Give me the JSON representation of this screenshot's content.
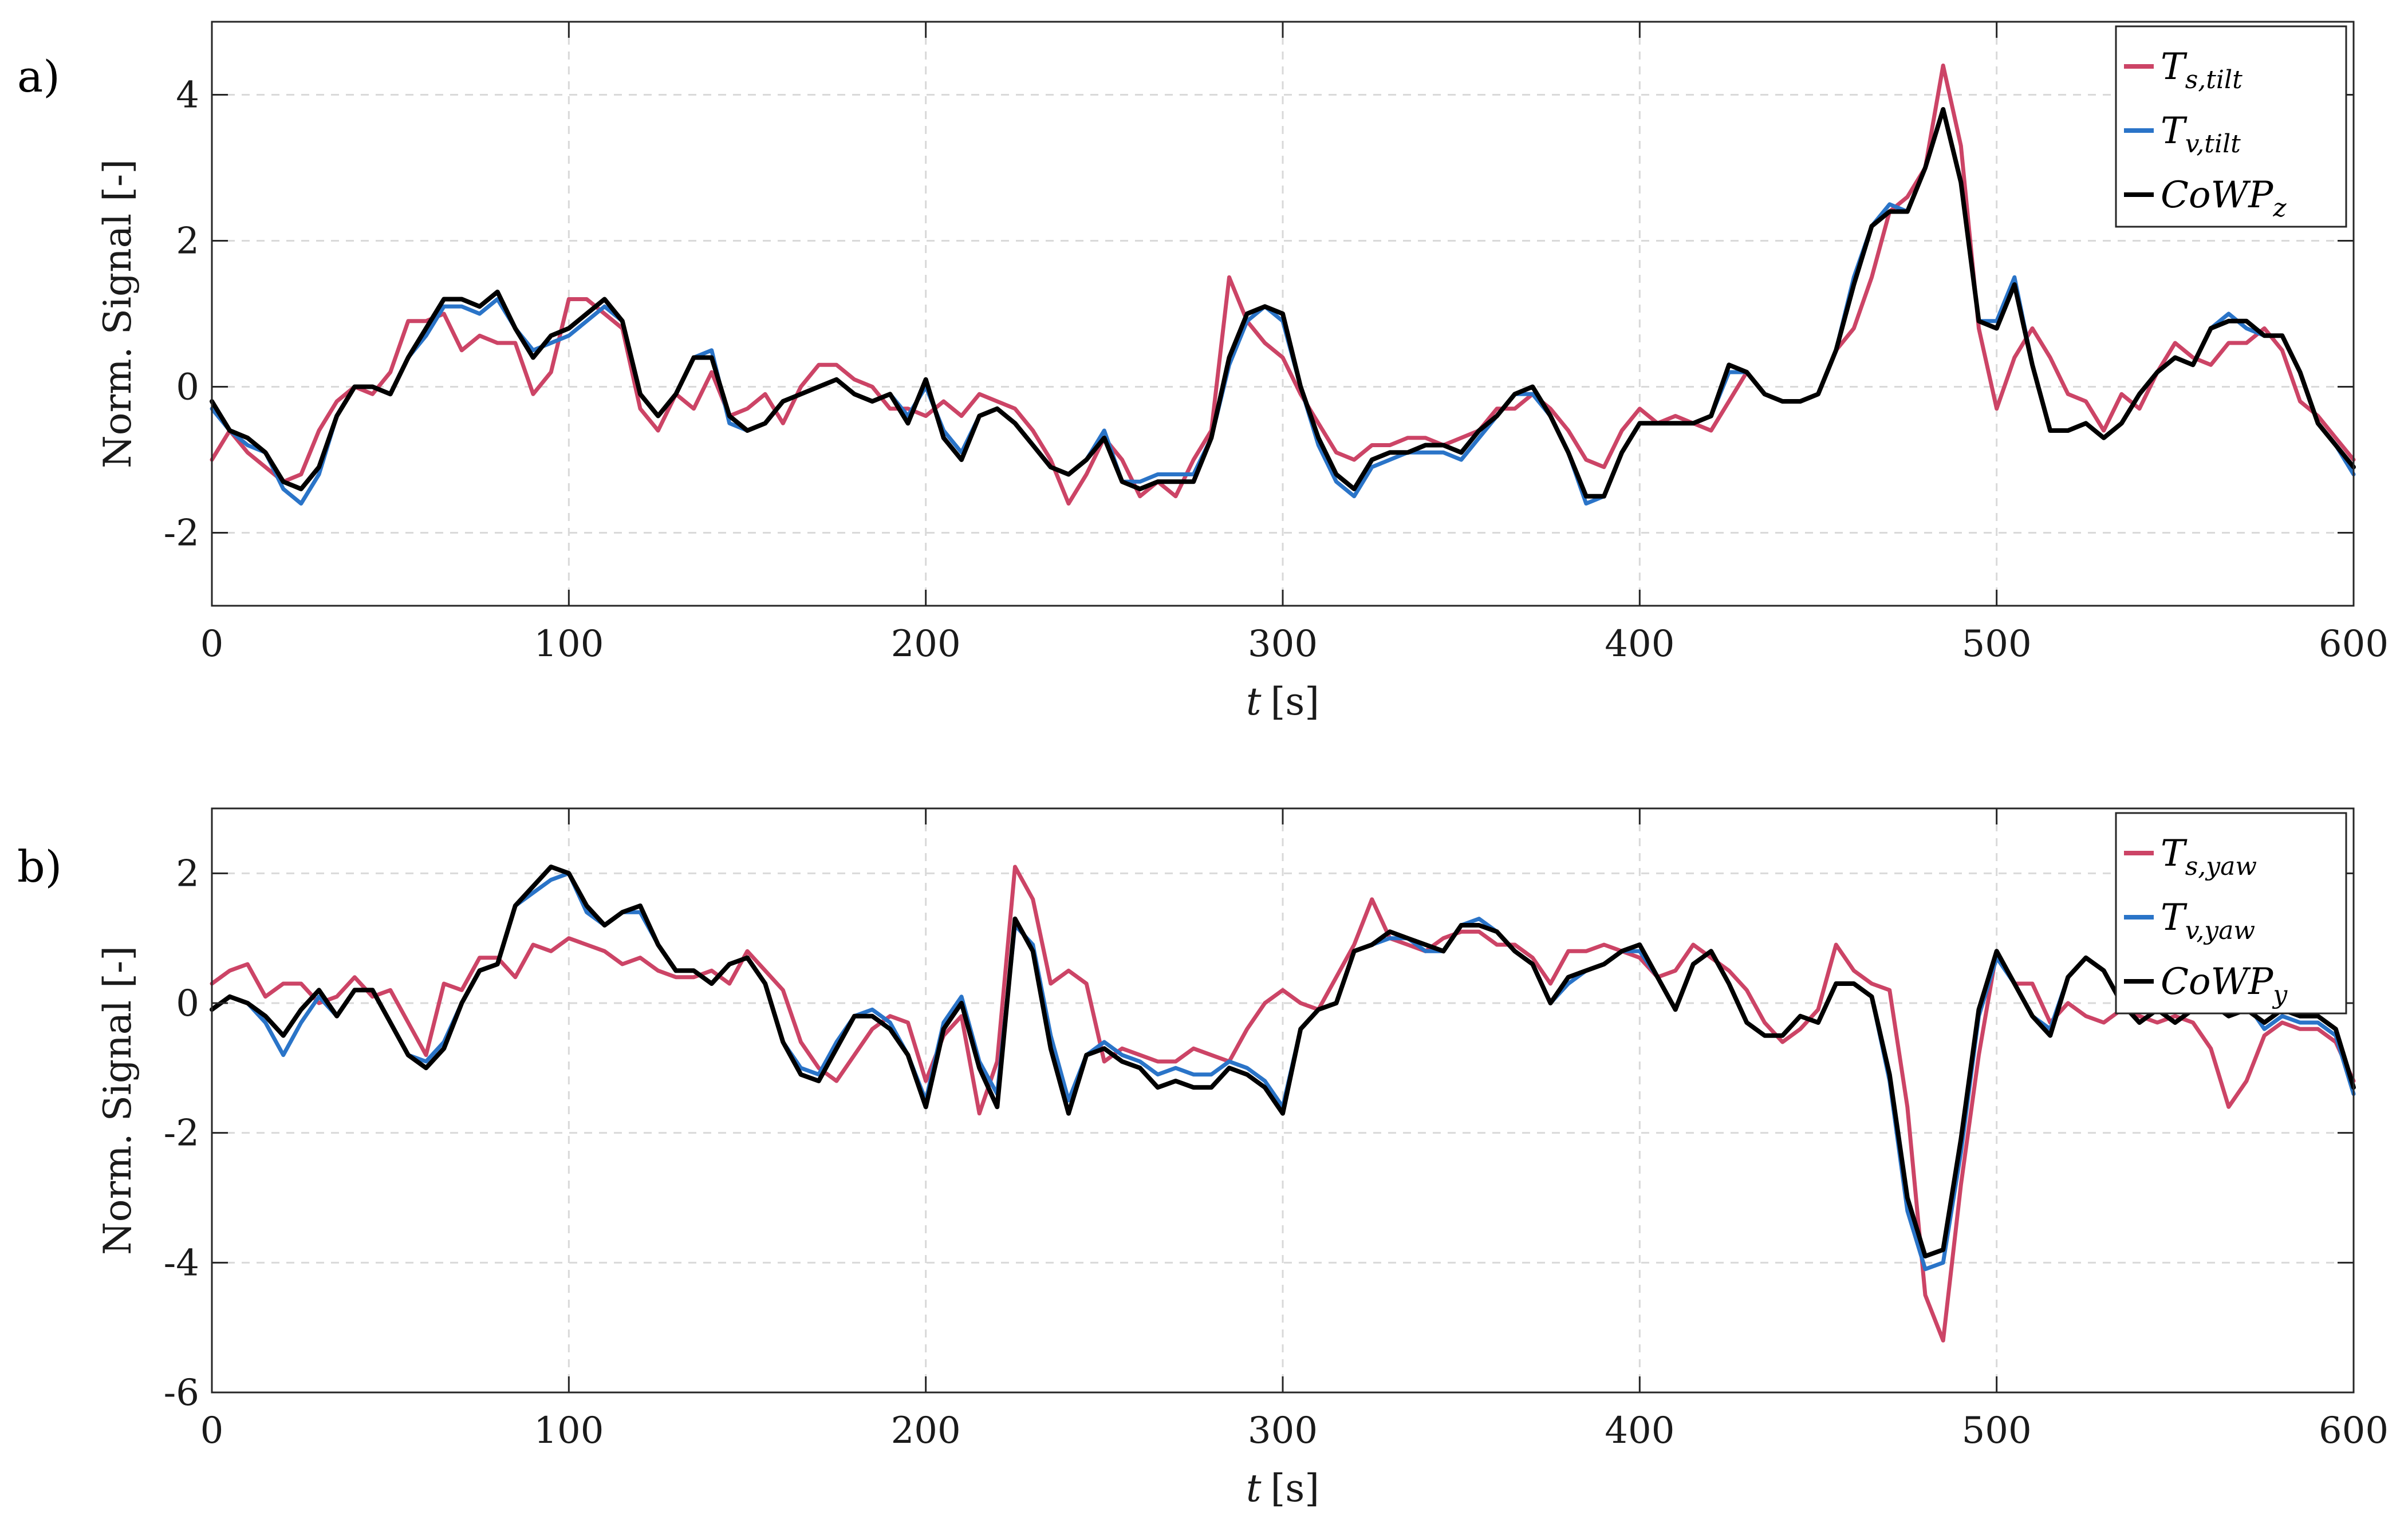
{
  "colors": {
    "series_s": "#cc4466",
    "series_v": "#2a74c8",
    "series_cowp": "#000000"
  },
  "chart_data": [
    {
      "type": "line",
      "panel_label": "a)",
      "xlabel_var": "t",
      "xlabel_unit": "[s]",
      "ylabel": "Norm. Signal [-]",
      "xlim": [
        0,
        600
      ],
      "ylim": [
        -3,
        5
      ],
      "xticks": [
        "0",
        "100",
        "200",
        "300",
        "400",
        "500",
        "600"
      ],
      "yticks": [
        "-2",
        "0",
        "2",
        "4"
      ],
      "grid": true,
      "legend_position": "top-right",
      "x": [
        0,
        5,
        10,
        15,
        20,
        25,
        30,
        35,
        40,
        45,
        50,
        55,
        60,
        65,
        70,
        75,
        80,
        85,
        90,
        95,
        100,
        105,
        110,
        115,
        120,
        125,
        130,
        135,
        140,
        145,
        150,
        155,
        160,
        165,
        170,
        175,
        180,
        185,
        190,
        195,
        200,
        205,
        210,
        215,
        220,
        225,
        230,
        235,
        240,
        245,
        250,
        255,
        260,
        265,
        270,
        275,
        280,
        285,
        290,
        295,
        300,
        305,
        310,
        315,
        320,
        325,
        330,
        335,
        340,
        345,
        350,
        355,
        360,
        365,
        370,
        375,
        380,
        385,
        390,
        395,
        400,
        405,
        410,
        415,
        420,
        425,
        430,
        435,
        440,
        445,
        450,
        455,
        460,
        465,
        470,
        475,
        480,
        485,
        490,
        495,
        500,
        505,
        510,
        515,
        520,
        525,
        530,
        535,
        540,
        545,
        550,
        555,
        560,
        565,
        570,
        575,
        580,
        585,
        590,
        595,
        600
      ],
      "series": [
        {
          "name": "T",
          "name_sub": "s,tilt",
          "color_key": "series_s",
          "values": [
            -1.0,
            -0.6,
            -0.9,
            -1.1,
            -1.3,
            -1.2,
            -0.6,
            -0.2,
            0.0,
            -0.1,
            0.2,
            0.9,
            0.9,
            1.0,
            0.5,
            0.7,
            0.6,
            0.6,
            -0.1,
            0.2,
            1.2,
            1.2,
            1.0,
            0.8,
            -0.3,
            -0.6,
            -0.1,
            -0.3,
            0.2,
            -0.4,
            -0.3,
            -0.1,
            -0.5,
            0.0,
            0.3,
            0.3,
            0.1,
            0.0,
            -0.3,
            -0.3,
            -0.4,
            -0.2,
            -0.4,
            -0.1,
            -0.2,
            -0.3,
            -0.6,
            -1.0,
            -1.6,
            -1.2,
            -0.7,
            -1.0,
            -1.5,
            -1.3,
            -1.5,
            -1.0,
            -0.6,
            1.5,
            0.9,
            0.6,
            0.4,
            -0.1,
            -0.5,
            -0.9,
            -1.0,
            -0.8,
            -0.8,
            -0.7,
            -0.7,
            -0.8,
            -0.7,
            -0.6,
            -0.3,
            -0.3,
            -0.1,
            -0.3,
            -0.6,
            -1.0,
            -1.1,
            -0.6,
            -0.3,
            -0.5,
            -0.4,
            -0.5,
            -0.6,
            -0.2,
            0.2,
            -0.1,
            -0.2,
            -0.2,
            -0.1,
            0.5,
            0.8,
            1.5,
            2.4,
            2.6,
            3.0,
            4.4,
            3.3,
            0.8,
            -0.3,
            0.4,
            0.8,
            0.4,
            -0.1,
            -0.2,
            -0.6,
            -0.1,
            -0.3,
            0.2,
            0.6,
            0.4,
            0.3,
            0.6,
            0.6,
            0.8,
            0.5,
            -0.2,
            -0.4,
            -0.7,
            -1.0
          ]
        },
        {
          "name": "T",
          "name_sub": "v,tilt",
          "color_key": "series_v",
          "values": [
            -0.3,
            -0.6,
            -0.8,
            -0.9,
            -1.4,
            -1.6,
            -1.2,
            -0.4,
            0.0,
            0.0,
            -0.1,
            0.4,
            0.7,
            1.1,
            1.1,
            1.0,
            1.2,
            0.8,
            0.5,
            0.6,
            0.7,
            0.9,
            1.1,
            0.9,
            -0.1,
            -0.4,
            -0.1,
            0.4,
            0.5,
            -0.5,
            -0.6,
            -0.5,
            -0.2,
            -0.1,
            0.0,
            0.1,
            -0.1,
            -0.2,
            -0.1,
            -0.4,
            0.0,
            -0.6,
            -0.9,
            -0.4,
            -0.3,
            -0.5,
            -0.8,
            -1.1,
            -1.2,
            -1.0,
            -0.6,
            -1.3,
            -1.3,
            -1.2,
            -1.2,
            -1.2,
            -0.7,
            0.3,
            0.9,
            1.1,
            0.9,
            0.0,
            -0.8,
            -1.3,
            -1.5,
            -1.1,
            -1.0,
            -0.9,
            -0.9,
            -0.9,
            -1.0,
            -0.7,
            -0.4,
            -0.1,
            -0.1,
            -0.4,
            -0.9,
            -1.6,
            -1.5,
            -0.9,
            -0.5,
            -0.5,
            -0.5,
            -0.5,
            -0.4,
            0.2,
            0.2,
            -0.1,
            -0.2,
            -0.2,
            -0.1,
            0.5,
            1.5,
            2.2,
            2.5,
            2.4,
            3.0,
            3.8,
            2.8,
            0.9,
            0.9,
            1.5,
            0.3,
            -0.6,
            -0.6,
            -0.5,
            -0.7,
            -0.5,
            -0.1,
            0.2,
            0.4,
            0.3,
            0.8,
            1.0,
            0.8,
            0.7,
            0.7,
            0.2,
            -0.5,
            -0.8,
            -1.2
          ]
        },
        {
          "name": "CoWP",
          "name_sub": "z",
          "color_key": "series_cowp",
          "values": [
            -0.2,
            -0.6,
            -0.7,
            -0.9,
            -1.3,
            -1.4,
            -1.1,
            -0.4,
            0.0,
            0.0,
            -0.1,
            0.4,
            0.8,
            1.2,
            1.2,
            1.1,
            1.3,
            0.8,
            0.4,
            0.7,
            0.8,
            1.0,
            1.2,
            0.9,
            -0.1,
            -0.4,
            -0.1,
            0.4,
            0.4,
            -0.4,
            -0.6,
            -0.5,
            -0.2,
            -0.1,
            0.0,
            0.1,
            -0.1,
            -0.2,
            -0.1,
            -0.5,
            0.1,
            -0.7,
            -1.0,
            -0.4,
            -0.3,
            -0.5,
            -0.8,
            -1.1,
            -1.2,
            -1.0,
            -0.7,
            -1.3,
            -1.4,
            -1.3,
            -1.3,
            -1.3,
            -0.7,
            0.4,
            1.0,
            1.1,
            1.0,
            0.0,
            -0.7,
            -1.2,
            -1.4,
            -1.0,
            -0.9,
            -0.9,
            -0.8,
            -0.8,
            -0.9,
            -0.6,
            -0.4,
            -0.1,
            0.0,
            -0.4,
            -0.9,
            -1.5,
            -1.5,
            -0.9,
            -0.5,
            -0.5,
            -0.5,
            -0.5,
            -0.4,
            0.3,
            0.2,
            -0.1,
            -0.2,
            -0.2,
            -0.1,
            0.5,
            1.4,
            2.2,
            2.4,
            2.4,
            3.0,
            3.8,
            2.8,
            0.9,
            0.8,
            1.4,
            0.3,
            -0.6,
            -0.6,
            -0.5,
            -0.7,
            -0.5,
            -0.1,
            0.2,
            0.4,
            0.3,
            0.8,
            0.9,
            0.9,
            0.7,
            0.7,
            0.2,
            -0.5,
            -0.8,
            -1.1
          ]
        }
      ]
    },
    {
      "type": "line",
      "panel_label": "b)",
      "xlabel_var": "t",
      "xlabel_unit": "[s]",
      "ylabel": "Norm. Signal [-]",
      "xlim": [
        0,
        600
      ],
      "ylim": [
        -6,
        3
      ],
      "xticks": [
        "0",
        "100",
        "200",
        "300",
        "400",
        "500",
        "600"
      ],
      "yticks": [
        "-6",
        "-4",
        "-2",
        "0",
        "2"
      ],
      "grid": true,
      "legend_position": "top-right",
      "x": [
        0,
        5,
        10,
        15,
        20,
        25,
        30,
        35,
        40,
        45,
        50,
        55,
        60,
        65,
        70,
        75,
        80,
        85,
        90,
        95,
        100,
        105,
        110,
        115,
        120,
        125,
        130,
        135,
        140,
        145,
        150,
        155,
        160,
        165,
        170,
        175,
        180,
        185,
        190,
        195,
        200,
        205,
        210,
        215,
        220,
        225,
        230,
        235,
        240,
        245,
        250,
        255,
        260,
        265,
        270,
        275,
        280,
        285,
        290,
        295,
        300,
        305,
        310,
        315,
        320,
        325,
        330,
        335,
        340,
        345,
        350,
        355,
        360,
        365,
        370,
        375,
        380,
        385,
        390,
        395,
        400,
        405,
        410,
        415,
        420,
        425,
        430,
        435,
        440,
        445,
        450,
        455,
        460,
        465,
        470,
        475,
        480,
        485,
        490,
        495,
        500,
        505,
        510,
        515,
        520,
        525,
        530,
        535,
        540,
        545,
        550,
        555,
        560,
        565,
        570,
        575,
        580,
        585,
        590,
        595,
        600
      ],
      "series": [
        {
          "name": "T",
          "name_sub": "s,yaw",
          "color_key": "series_s",
          "values": [
            0.3,
            0.5,
            0.6,
            0.1,
            0.3,
            0.3,
            0.0,
            0.1,
            0.4,
            0.1,
            0.2,
            -0.3,
            -0.8,
            0.3,
            0.2,
            0.7,
            0.7,
            0.4,
            0.9,
            0.8,
            1.0,
            0.9,
            0.8,
            0.6,
            0.7,
            0.5,
            0.4,
            0.4,
            0.5,
            0.3,
            0.8,
            0.5,
            0.2,
            -0.6,
            -1.0,
            -1.2,
            -0.8,
            -0.4,
            -0.2,
            -0.3,
            -1.2,
            -0.5,
            -0.2,
            -1.7,
            -0.9,
            2.1,
            1.6,
            0.3,
            0.5,
            0.3,
            -0.9,
            -0.7,
            -0.8,
            -0.9,
            -0.9,
            -0.7,
            -0.8,
            -0.9,
            -0.4,
            0.0,
            0.2,
            0.0,
            -0.1,
            0.4,
            0.9,
            1.6,
            1.0,
            0.9,
            0.8,
            1.0,
            1.1,
            1.1,
            0.9,
            0.9,
            0.7,
            0.3,
            0.8,
            0.8,
            0.9,
            0.8,
            0.7,
            0.4,
            0.5,
            0.9,
            0.7,
            0.5,
            0.2,
            -0.3,
            -0.6,
            -0.4,
            -0.1,
            0.9,
            0.5,
            0.3,
            0.2,
            -1.6,
            -4.5,
            -5.2,
            -2.8,
            -0.8,
            0.8,
            0.3,
            0.3,
            -0.3,
            0.0,
            -0.2,
            -0.3,
            -0.1,
            -0.2,
            -0.3,
            -0.2,
            -0.3,
            -0.7,
            -1.6,
            -1.2,
            -0.5,
            -0.3,
            -0.4,
            -0.4,
            -0.6,
            -1.2
          ]
        },
        {
          "name": "T",
          "name_sub": "v,yaw",
          "color_key": "series_v",
          "values": [
            -0.1,
            0.1,
            0.0,
            -0.3,
            -0.8,
            -0.3,
            0.1,
            -0.2,
            0.2,
            0.2,
            -0.3,
            -0.8,
            -0.9,
            -0.6,
            0.0,
            0.5,
            0.6,
            1.5,
            1.7,
            1.9,
            2.0,
            1.4,
            1.2,
            1.4,
            1.4,
            0.9,
            0.5,
            0.5,
            0.3,
            0.6,
            0.7,
            0.3,
            -0.6,
            -1.0,
            -1.1,
            -0.6,
            -0.2,
            -0.1,
            -0.3,
            -0.8,
            -1.5,
            -0.3,
            0.1,
            -0.9,
            -1.4,
            1.2,
            0.9,
            -0.5,
            -1.5,
            -0.8,
            -0.6,
            -0.8,
            -0.9,
            -1.1,
            -1.0,
            -1.1,
            -1.1,
            -0.9,
            -1.0,
            -1.2,
            -1.6,
            -0.4,
            -0.1,
            0.0,
            0.8,
            0.9,
            1.0,
            1.0,
            0.8,
            0.8,
            1.2,
            1.3,
            1.1,
            0.8,
            0.6,
            0.0,
            0.3,
            0.5,
            0.6,
            0.8,
            0.8,
            0.4,
            -0.1,
            0.6,
            0.8,
            0.3,
            -0.3,
            -0.5,
            -0.5,
            -0.2,
            -0.3,
            0.3,
            0.3,
            0.1,
            -1.2,
            -3.2,
            -4.1,
            -4.0,
            -2.3,
            -0.2,
            0.7,
            0.3,
            -0.2,
            -0.4,
            0.4,
            0.7,
            0.5,
            0.0,
            -0.3,
            -0.1,
            -0.3,
            -0.1,
            0.0,
            -0.2,
            0.0,
            -0.4,
            -0.2,
            -0.3,
            -0.3,
            -0.5,
            -1.4
          ]
        },
        {
          "name": "CoWP",
          "name_sub": "y",
          "color_key": "series_cowp",
          "values": [
            -0.1,
            0.1,
            0.0,
            -0.2,
            -0.5,
            -0.1,
            0.2,
            -0.2,
            0.2,
            0.2,
            -0.3,
            -0.8,
            -1.0,
            -0.7,
            0.0,
            0.5,
            0.6,
            1.5,
            1.8,
            2.1,
            2.0,
            1.5,
            1.2,
            1.4,
            1.5,
            0.9,
            0.5,
            0.5,
            0.3,
            0.6,
            0.7,
            0.3,
            -0.6,
            -1.1,
            -1.2,
            -0.7,
            -0.2,
            -0.2,
            -0.4,
            -0.8,
            -1.6,
            -0.4,
            0.0,
            -1.0,
            -1.6,
            1.3,
            0.8,
            -0.7,
            -1.7,
            -0.8,
            -0.7,
            -0.9,
            -1.0,
            -1.3,
            -1.2,
            -1.3,
            -1.3,
            -1.0,
            -1.1,
            -1.3,
            -1.7,
            -0.4,
            -0.1,
            0.0,
            0.8,
            0.9,
            1.1,
            1.0,
            0.9,
            0.8,
            1.2,
            1.2,
            1.1,
            0.8,
            0.6,
            0.0,
            0.4,
            0.5,
            0.6,
            0.8,
            0.9,
            0.4,
            -0.1,
            0.6,
            0.8,
            0.3,
            -0.3,
            -0.5,
            -0.5,
            -0.2,
            -0.3,
            0.3,
            0.3,
            0.1,
            -1.1,
            -3.0,
            -3.9,
            -3.8,
            -2.1,
            -0.1,
            0.8,
            0.3,
            -0.2,
            -0.5,
            0.4,
            0.7,
            0.5,
            0.0,
            -0.3,
            -0.1,
            -0.3,
            -0.1,
            0.0,
            -0.2,
            -0.1,
            -0.3,
            -0.1,
            -0.2,
            -0.2,
            -0.4,
            -1.3
          ]
        }
      ]
    }
  ]
}
